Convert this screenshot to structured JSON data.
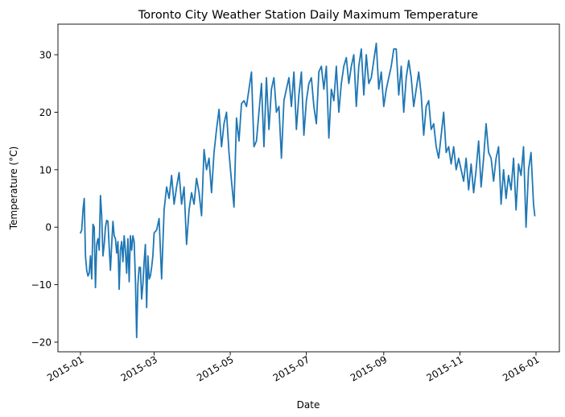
{
  "chart_data": {
    "type": "line",
    "title": "Toronto City Weather Station Daily Maximum Temperature",
    "xlabel": "Date",
    "ylabel": "Temperature (°C)",
    "x_axis_type": "date",
    "xlim": [
      "2015-01-01",
      "2015-12-31"
    ],
    "ylim": [
      -22,
      35
    ],
    "x_ticks": [
      "2015-01",
      "2015-03",
      "2015-05",
      "2015-07",
      "2015-09",
      "2015-11",
      "2016-01"
    ],
    "y_ticks": [
      -20,
      -10,
      0,
      10,
      20,
      30
    ],
    "grid": false,
    "legend": "none",
    "series": [
      {
        "color": "#1f77b4",
        "x": [
          "2015-01-01",
          "2015-01-02",
          "2015-01-03",
          "2015-01-04",
          "2015-01-05",
          "2015-01-06",
          "2015-01-07",
          "2015-01-08",
          "2015-01-09",
          "2015-01-10",
          "2015-01-11",
          "2015-01-12",
          "2015-01-13",
          "2015-01-14",
          "2015-01-15",
          "2015-01-16",
          "2015-01-17",
          "2015-01-18",
          "2015-01-19",
          "2015-01-20",
          "2015-01-21",
          "2015-01-22",
          "2015-01-23",
          "2015-01-24",
          "2015-01-25",
          "2015-01-26",
          "2015-01-27",
          "2015-01-28",
          "2015-01-29",
          "2015-01-30",
          "2015-01-31",
          "2015-02-01",
          "2015-02-02",
          "2015-02-03",
          "2015-02-04",
          "2015-02-05",
          "2015-02-06",
          "2015-02-07",
          "2015-02-08",
          "2015-02-09",
          "2015-02-10",
          "2015-02-11",
          "2015-02-12",
          "2015-02-13",
          "2015-02-14",
          "2015-02-15",
          "2015-02-16",
          "2015-02-17",
          "2015-02-18",
          "2015-02-19",
          "2015-02-20",
          "2015-02-21",
          "2015-02-22",
          "2015-02-23",
          "2015-02-24",
          "2015-02-25",
          "2015-02-26",
          "2015-02-27",
          "2015-02-28",
          "2015-03-01",
          "2015-03-03",
          "2015-03-05",
          "2015-03-07",
          "2015-03-09",
          "2015-03-11",
          "2015-03-13",
          "2015-03-15",
          "2015-03-17",
          "2015-03-19",
          "2015-03-21",
          "2015-03-23",
          "2015-03-25",
          "2015-03-27",
          "2015-03-29",
          "2015-03-31",
          "2015-04-02",
          "2015-04-04",
          "2015-04-06",
          "2015-04-08",
          "2015-04-10",
          "2015-04-12",
          "2015-04-14",
          "2015-04-16",
          "2015-04-18",
          "2015-04-20",
          "2015-04-22",
          "2015-04-24",
          "2015-04-26",
          "2015-04-28",
          "2015-04-30",
          "2015-05-02",
          "2015-05-04",
          "2015-05-06",
          "2015-05-08",
          "2015-05-10",
          "2015-05-12",
          "2015-05-14",
          "2015-05-16",
          "2015-05-18",
          "2015-05-20",
          "2015-05-22",
          "2015-05-24",
          "2015-05-26",
          "2015-05-28",
          "2015-05-30",
          "2015-06-01",
          "2015-06-03",
          "2015-06-05",
          "2015-06-07",
          "2015-06-09",
          "2015-06-11",
          "2015-06-13",
          "2015-06-15",
          "2015-06-17",
          "2015-06-19",
          "2015-06-21",
          "2015-06-23",
          "2015-06-25",
          "2015-06-27",
          "2015-06-29",
          "2015-07-01",
          "2015-07-03",
          "2015-07-05",
          "2015-07-07",
          "2015-07-09",
          "2015-07-11",
          "2015-07-13",
          "2015-07-15",
          "2015-07-17",
          "2015-07-19",
          "2015-07-21",
          "2015-07-23",
          "2015-07-25",
          "2015-07-27",
          "2015-07-29",
          "2015-07-31",
          "2015-08-02",
          "2015-08-04",
          "2015-08-06",
          "2015-08-08",
          "2015-08-10",
          "2015-08-12",
          "2015-08-14",
          "2015-08-16",
          "2015-08-18",
          "2015-08-20",
          "2015-08-22",
          "2015-08-24",
          "2015-08-26",
          "2015-08-28",
          "2015-08-30",
          "2015-09-01",
          "2015-09-03",
          "2015-09-05",
          "2015-09-07",
          "2015-09-09",
          "2015-09-11",
          "2015-09-13",
          "2015-09-15",
          "2015-09-17",
          "2015-09-19",
          "2015-09-21",
          "2015-09-23",
          "2015-09-25",
          "2015-09-27",
          "2015-09-29",
          "2015-10-01",
          "2015-10-03",
          "2015-10-05",
          "2015-10-07",
          "2015-10-09",
          "2015-10-11",
          "2015-10-13",
          "2015-10-15",
          "2015-10-17",
          "2015-10-19",
          "2015-10-21",
          "2015-10-23",
          "2015-10-25",
          "2015-10-27",
          "2015-10-29",
          "2015-10-31",
          "2015-11-02",
          "2015-11-04",
          "2015-11-06",
          "2015-11-08",
          "2015-11-10",
          "2015-11-12",
          "2015-11-14",
          "2015-11-16",
          "2015-11-18",
          "2015-11-20",
          "2015-11-22",
          "2015-11-24",
          "2015-11-26",
          "2015-11-28",
          "2015-11-30",
          "2015-12-02",
          "2015-12-04",
          "2015-12-06",
          "2015-12-08",
          "2015-12-10",
          "2015-12-12",
          "2015-12-14",
          "2015-12-16",
          "2015-12-18",
          "2015-12-20",
          "2015-12-22",
          "2015-12-24",
          "2015-12-26",
          "2015-12-28",
          "2015-12-30",
          "2015-12-31"
        ],
        "y": [
          -1,
          -0.5,
          3,
          5,
          -5,
          -7.5,
          -8.5,
          -8,
          -5,
          -9,
          0.5,
          0,
          -10.5,
          -3,
          -2,
          -4,
          5.5,
          2,
          -5,
          -3,
          0,
          1.2,
          1,
          -3.5,
          -7.5,
          -3,
          1,
          -1.5,
          -2,
          -4.5,
          -2.5,
          -10.8,
          -4,
          -2.5,
          -6,
          -1.5,
          -4,
          -8,
          -2,
          -9.5,
          -1.5,
          -4,
          -1.5,
          -2.5,
          -9,
          -19.2,
          -10,
          -7,
          -7,
          -12.5,
          -10,
          -6,
          -3,
          -14,
          -5,
          -9,
          -8.5,
          -7,
          -5,
          -1,
          -0.5,
          1.5,
          -9,
          3,
          7,
          5,
          9,
          4,
          7,
          9.5,
          4,
          7,
          -3,
          3,
          6,
          4,
          8.5,
          6,
          2,
          13.5,
          10,
          12,
          6,
          13,
          17,
          20.5,
          14,
          18,
          20,
          13,
          8,
          3.5,
          19,
          15,
          21.5,
          22,
          21,
          24,
          27,
          14,
          15,
          20,
          25,
          14,
          26,
          17,
          24,
          26,
          20,
          21,
          12,
          22,
          24,
          26,
          21,
          27,
          17,
          23,
          27,
          16,
          22,
          25,
          26,
          21,
          18,
          27,
          28,
          24,
          28,
          15.5,
          24,
          22,
          28,
          20,
          25,
          28,
          29.5,
          25,
          28,
          30,
          21,
          28,
          31,
          23,
          30,
          25,
          26,
          29,
          32,
          24,
          27,
          21,
          24,
          26,
          28,
          31,
          31,
          23,
          28,
          20,
          26,
          29,
          26,
          21,
          24,
          27,
          23,
          16,
          21,
          22,
          17,
          18,
          14,
          12,
          16,
          20,
          13,
          14,
          11,
          14,
          10,
          12,
          10,
          8,
          12,
          6.5,
          11,
          6,
          10,
          15,
          7,
          12,
          18,
          13,
          12,
          8,
          12,
          14,
          4,
          10,
          5,
          9,
          6.5,
          12,
          3,
          11,
          9,
          14,
          0,
          10,
          13,
          4,
          2
        ]
      }
    ]
  }
}
